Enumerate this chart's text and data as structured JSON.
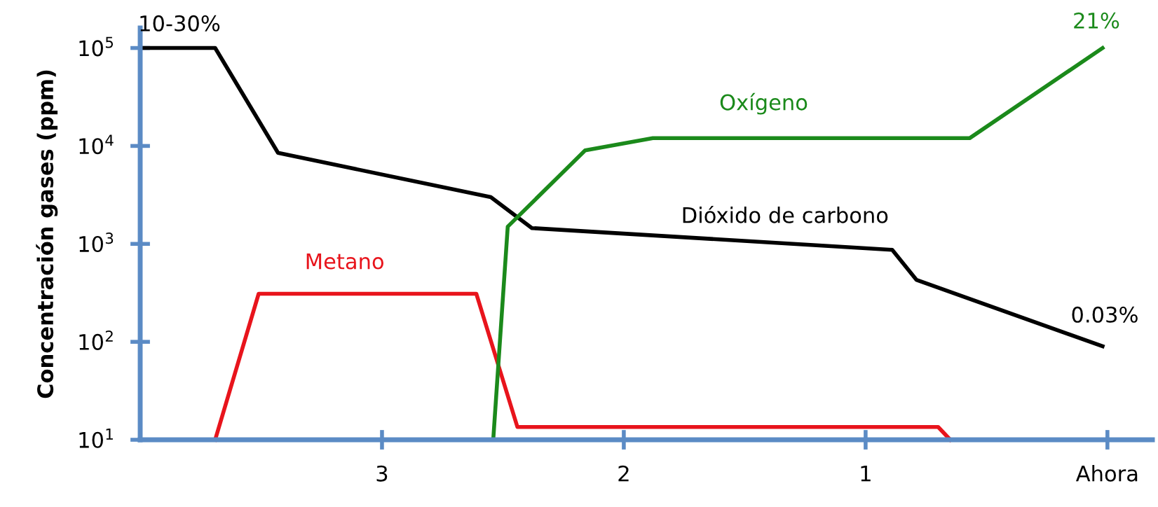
{
  "chart_data": {
    "type": "line",
    "ylabel": "Concentración gases (ppm)",
    "log": "y",
    "grid": false,
    "legend": false,
    "marker": "none",
    "line_style": "solid",
    "xlim": [
      4.0,
      -0.186
    ],
    "xticks": [
      3,
      2,
      1,
      {
        "value": 0,
        "label": "Ahora"
      }
    ],
    "ylim": [
      10,
      160000
    ],
    "yticks": [
      {
        "value": 10,
        "label": "10$^{1}$"
      },
      {
        "value": 100,
        "label": "10$^{2}$"
      },
      {
        "value": 1000,
        "label": "10$^{3}$"
      },
      {
        "value": 10000,
        "label": "10$^{4}$"
      },
      {
        "value": 100000,
        "label": "10$^{5}$"
      }
    ],
    "series": [
      {
        "name": "Dióxido de carbono",
        "color": "#000000",
        "x": [
          4.0,
          3.69,
          3.43,
          2.55,
          2.38,
          0.89,
          0.79,
          0.02
        ],
        "values": [
          100000,
          100000,
          8500,
          3000,
          1450,
          870,
          430,
          90
        ]
      },
      {
        "name": "Metano",
        "color": "#e8141c",
        "x": [
          3.69,
          3.51,
          2.61,
          2.44,
          0.7,
          0.65
        ],
        "values": [
          10,
          310,
          310,
          13.5,
          13.5,
          10
        ]
      },
      {
        "name": "Oxígeno",
        "color": "#1b8a1b",
        "x": [
          2.54,
          2.48,
          2.16,
          1.88,
          0.57,
          0.02
        ],
        "values": [
          10,
          1500,
          9000,
          12000,
          12000,
          100000
        ]
      }
    ],
    "annotations": [
      "10-30%",
      "21%",
      "0.03%"
    ]
  }
}
